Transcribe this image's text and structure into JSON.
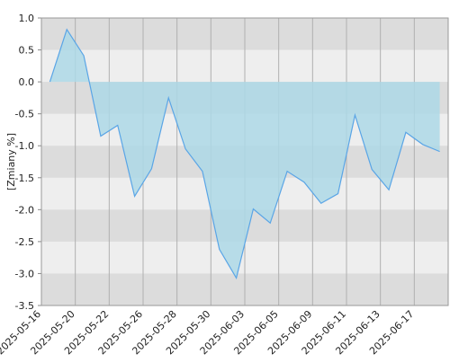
{
  "chart_data": {
    "type": "area",
    "y_label": "[Zmiany %]",
    "categories": [
      "2025-05-16",
      null,
      "2025-05-20",
      null,
      "2025-05-22",
      null,
      "2025-05-26",
      null,
      "2025-05-28",
      null,
      "2025-05-30",
      null,
      "2025-06-03",
      null,
      "2025-06-05",
      null,
      "2025-06-09",
      null,
      "2025-06-11",
      null,
      "2025-06-13",
      null,
      "2025-06-17",
      null
    ],
    "values": [
      0.0,
      0.82,
      0.41,
      -0.85,
      -0.68,
      -1.79,
      -1.36,
      -0.25,
      -1.05,
      -1.4,
      -2.62,
      -3.07,
      -1.99,
      -2.21,
      -1.4,
      -1.57,
      -1.9,
      -1.75,
      -0.52,
      -1.37,
      -1.69,
      -0.79,
      -0.98,
      -1.09
    ],
    "color": "#5aa5e6",
    "fill": "#add8e6",
    "ylim": [
      -3.5,
      1.0
    ],
    "yticks": [
      {
        "value": 1.0,
        "label": "1.0"
      },
      {
        "value": 0.5,
        "label": "0.5"
      },
      {
        "value": 0.0,
        "label": "0.0"
      },
      {
        "value": -0.5,
        "label": "-0.5"
      },
      {
        "value": -1.0,
        "label": "-1.0"
      },
      {
        "value": -1.5,
        "label": "-1.5"
      },
      {
        "value": -2.0,
        "label": "-2.0"
      },
      {
        "value": -2.5,
        "label": "-2.5"
      },
      {
        "value": -3.0,
        "label": "-3.0"
      },
      {
        "value": -3.5,
        "label": "-3.5"
      }
    ],
    "grid": true
  }
}
